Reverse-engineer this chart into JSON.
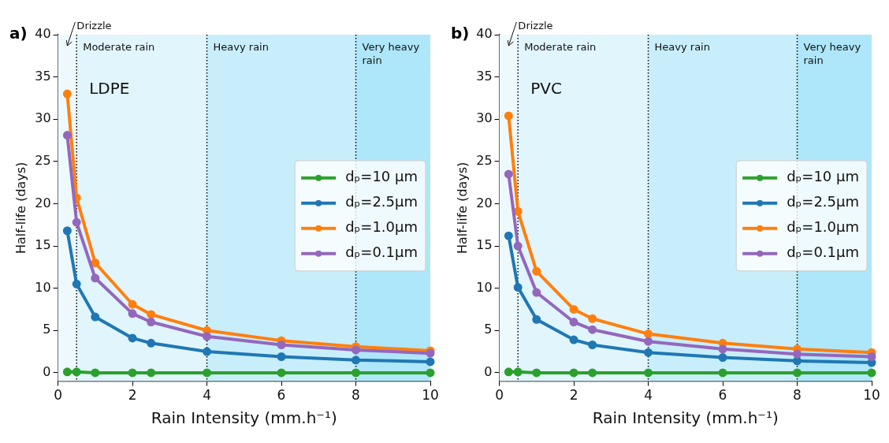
{
  "chart_data": [
    {
      "type": "line",
      "title": "a)",
      "xlabel": "Rain Intensity (mm.h⁻¹)",
      "ylabel": "Half-life (days)",
      "annotations": [
        "LDPE"
      ],
      "x": [
        0.25,
        0.5,
        1,
        2,
        2.5,
        4,
        6,
        8,
        10
      ],
      "xlim": [
        0,
        10
      ],
      "ylim": [
        -1,
        40
      ],
      "xticks": [
        0,
        2,
        4,
        6,
        8,
        10
      ],
      "yticks": [
        0,
        5,
        10,
        15,
        20,
        25,
        30,
        35,
        40
      ],
      "grid": false,
      "legend": "right",
      "marker": "circle",
      "line_style": "solid",
      "series": [
        {
          "name": "dₚ=10 μm",
          "color": "#2ca02c",
          "values": [
            0.1,
            0.1,
            0,
            0,
            0,
            0,
            0,
            0,
            0
          ]
        },
        {
          "name": "dₚ=2.5μm",
          "color": "#1f77b4",
          "values": [
            16.8,
            10.5,
            6.6,
            4.1,
            3.5,
            2.5,
            1.9,
            1.5,
            1.3
          ]
        },
        {
          "name": "dₚ=1.0μm",
          "color": "#ff7f0e",
          "values": [
            33,
            20.7,
            13,
            8.1,
            6.9,
            5,
            3.8,
            3.1,
            2.6
          ]
        },
        {
          "name": "dₚ=0.1μm",
          "color": "#9467bd",
          "values": [
            28.1,
            17.8,
            11.2,
            7,
            6,
            4.3,
            3.3,
            2.7,
            2.3
          ]
        }
      ],
      "bands": [
        {
          "axis": "x",
          "from": 0,
          "to": 0.5,
          "label": "Drizzle",
          "color": "#eef9fd"
        },
        {
          "axis": "x",
          "from": 0.5,
          "to": 4,
          "label": "Moderate rain",
          "color": "#e0f5fc"
        },
        {
          "axis": "x",
          "from": 4,
          "to": 8,
          "label": "Heavy rain",
          "color": "#c8eefb"
        },
        {
          "axis": "x",
          "from": 8,
          "to": 10,
          "label": "Very heavy rain",
          "color": "#aee6fa"
        }
      ],
      "ref_lines": [
        {
          "axis": "x",
          "value": 0.5,
          "color": "#000000",
          "line_style": "dotted"
        },
        {
          "axis": "x",
          "value": 4,
          "color": "#000000",
          "line_style": "dotted"
        },
        {
          "axis": "x",
          "value": 8,
          "color": "#000000",
          "line_style": "dotted"
        }
      ]
    },
    {
      "type": "line",
      "title": "b)",
      "xlabel": "Rain Intensity (mm.h⁻¹)",
      "ylabel": "Half-life (days)",
      "annotations": [
        "PVC"
      ],
      "x": [
        0.25,
        0.5,
        1,
        2,
        2.5,
        4,
        6,
        8,
        10
      ],
      "xlim": [
        0,
        10
      ],
      "ylim": [
        -1,
        40
      ],
      "xticks": [
        0,
        2,
        4,
        6,
        8,
        10
      ],
      "yticks": [
        0,
        5,
        10,
        15,
        20,
        25,
        30,
        35,
        40
      ],
      "grid": false,
      "legend": "right",
      "marker": "circle",
      "line_style": "solid",
      "series": [
        {
          "name": "dₚ=10 μm",
          "color": "#2ca02c",
          "values": [
            0.1,
            0.1,
            0,
            0,
            0,
            0,
            0,
            0,
            0
          ]
        },
        {
          "name": "dₚ=2.5μm",
          "color": "#1f77b4",
          "values": [
            16.2,
            10.1,
            6.3,
            3.9,
            3.3,
            2.4,
            1.8,
            1.4,
            1.2
          ]
        },
        {
          "name": "dₚ=1.0μm",
          "color": "#ff7f0e",
          "values": [
            30.4,
            19.1,
            12,
            7.5,
            6.4,
            4.6,
            3.5,
            2.8,
            2.4
          ]
        },
        {
          "name": "dₚ=0.1μm",
          "color": "#9467bd",
          "values": [
            23.5,
            15,
            9.5,
            6,
            5.1,
            3.7,
            2.8,
            2.2,
            1.9
          ]
        }
      ],
      "bands": [
        {
          "axis": "x",
          "from": 0,
          "to": 0.5,
          "label": "Drizzle",
          "color": "#eef9fd"
        },
        {
          "axis": "x",
          "from": 0.5,
          "to": 4,
          "label": "Moderate rain",
          "color": "#e0f5fc"
        },
        {
          "axis": "x",
          "from": 4,
          "to": 8,
          "label": "Heavy rain",
          "color": "#c8eefb"
        },
        {
          "axis": "x",
          "from": 8,
          "to": 10,
          "label": "Very heavy rain",
          "color": "#aee6fa"
        }
      ],
      "ref_lines": [
        {
          "axis": "x",
          "value": 0.5,
          "color": "#000000",
          "line_style": "dotted"
        },
        {
          "axis": "x",
          "value": 4,
          "color": "#000000",
          "line_style": "dotted"
        },
        {
          "axis": "x",
          "value": 8,
          "color": "#000000",
          "line_style": "dotted"
        }
      ]
    }
  ]
}
